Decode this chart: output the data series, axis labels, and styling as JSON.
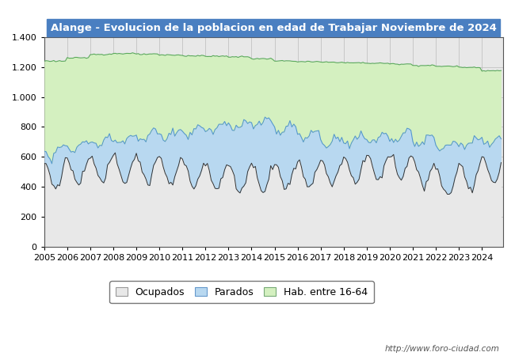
{
  "title": "Alange - Evolucion de la poblacion en edad de Trabajar Noviembre de 2024",
  "title_bg_color": "#4a7fc1",
  "title_text_color": "#ffffff",
  "ylim": [
    0,
    1400
  ],
  "yticks": [
    0,
    200,
    400,
    600,
    800,
    1000,
    1200,
    1400
  ],
  "xlim_start": 2005,
  "xlim_end": 2024.92,
  "fill_hab_color": "#d4f0c0",
  "fill_parados_color": "#b8d8f0",
  "fill_ocupados_color": "#e8e8e8",
  "line_hab_color": "#5aaa5a",
  "line_parados_color": "#5599cc",
  "line_ocupados_color": "#333333",
  "watermark": "http://www.foro-ciudad.com",
  "legend_labels": [
    "Ocupados",
    "Parados",
    "Hab. entre 16-64"
  ],
  "legend_facecolors": [
    "#e8e8e8",
    "#b8d8f0",
    "#d4f0c0"
  ],
  "legend_edgecolors": [
    "#999999",
    "#6699cc",
    "#77aa77"
  ],
  "plot_bg_color": "#e8e8e8",
  "fig_bg_color": "#ffffff"
}
